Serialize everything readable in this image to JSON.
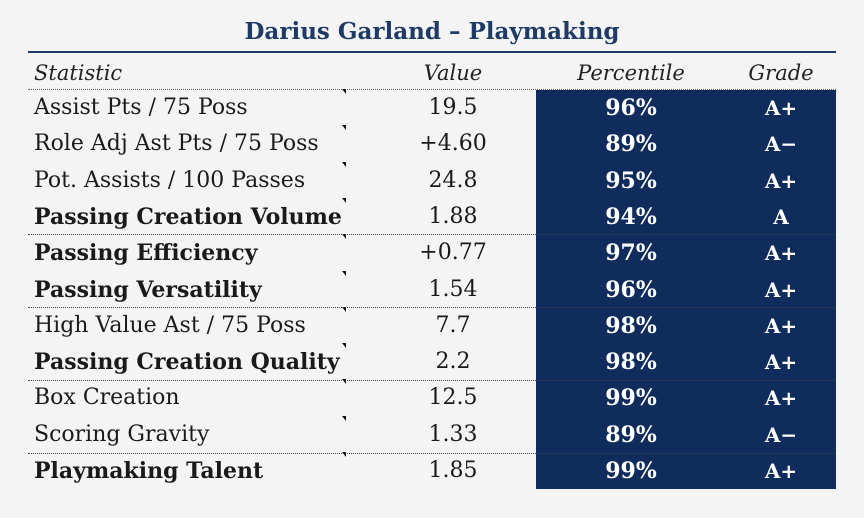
{
  "title": "Darius Garland – Playmaking",
  "columns": {
    "statistic": "Statistic",
    "value": "Value",
    "percentile": "Percentile",
    "grade": "Grade"
  },
  "rows": [
    {
      "statistic": "Assist Pts / 75 Poss",
      "value": "19.5",
      "percentile": "96%",
      "grade": "A+",
      "bold": false
    },
    {
      "statistic": "Role Adj Ast Pts / 75 Poss",
      "value": "+4.60",
      "percentile": "89%",
      "grade": "A−",
      "bold": false
    },
    {
      "statistic": "Pot. Assists / 100 Passes",
      "value": "24.8",
      "percentile": "95%",
      "grade": "A+",
      "bold": false
    },
    {
      "statistic": "Passing Creation Volume",
      "value": "1.88",
      "percentile": "94%",
      "grade": "A",
      "bold": true
    },
    {
      "statistic": "Passing Efficiency",
      "value": "+0.77",
      "percentile": "97%",
      "grade": "A+",
      "bold": true
    },
    {
      "statistic": "Passing Versatility",
      "value": "1.54",
      "percentile": "96%",
      "grade": "A+",
      "bold": true
    },
    {
      "statistic": "High Value Ast / 75 Poss",
      "value": "7.7",
      "percentile": "98%",
      "grade": "A+",
      "bold": false
    },
    {
      "statistic": "Passing Creation Quality",
      "value": "2.2",
      "percentile": "98%",
      "grade": "A+",
      "bold": true
    },
    {
      "statistic": "Box Creation",
      "value": "12.5",
      "percentile": "99%",
      "grade": "A+",
      "bold": false
    },
    {
      "statistic": "Scoring Gravity",
      "value": "1.33",
      "percentile": "89%",
      "grade": "A−",
      "bold": false
    },
    {
      "statistic": "Playmaking Talent",
      "value": "1.85",
      "percentile": "99%",
      "grade": "A+",
      "bold": true
    }
  ],
  "colors": {
    "title": "#1e3a66",
    "percentile_fill": "#0f2c5c",
    "background": "#f4f4f4"
  }
}
